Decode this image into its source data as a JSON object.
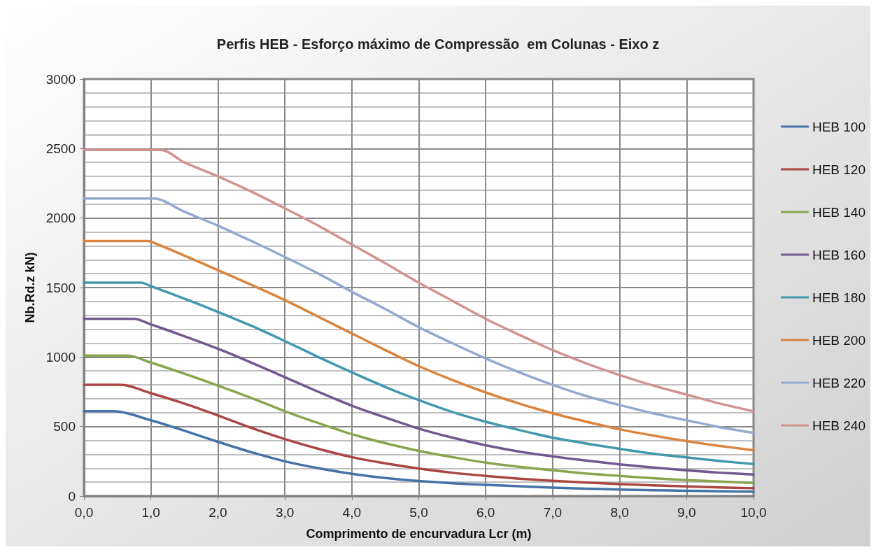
{
  "chart_data": {
    "type": "line",
    "title": "Perfis HEB - Esforço máximo de Compressão  em Colunas - Eixo z",
    "xlabel": "Comprimento de encurvadura Lcr (m)",
    "ylabel": "Nb.Rd.z kN)",
    "xlim": [
      0,
      10
    ],
    "xticks": [
      {
        "value": 0,
        "label": "0,0"
      },
      {
        "value": 1,
        "label": "1,0"
      },
      {
        "value": 2,
        "label": "2,0"
      },
      {
        "value": 3,
        "label": "3,0"
      },
      {
        "value": 4,
        "label": "4,0"
      },
      {
        "value": 5,
        "label": "5,0"
      },
      {
        "value": 6,
        "label": "6,0"
      },
      {
        "value": 7,
        "label": "7,0"
      },
      {
        "value": 8,
        "label": "8,0"
      },
      {
        "value": 9,
        "label": "9,0"
      },
      {
        "value": 10,
        "label": "10,0"
      }
    ],
    "ylim": [
      0,
      3000
    ],
    "yticks": [
      0,
      500,
      1000,
      1500,
      2000,
      2500,
      3000
    ],
    "grid": true,
    "legend": "right",
    "marker": "none",
    "line_style": "solid",
    "series": [
      {
        "name": "HEB 100",
        "color": "#4572a7",
        "x": [
          0,
          0.45,
          1,
          1.5,
          2,
          2.5,
          3,
          3.5,
          4,
          4.5,
          5,
          5.5,
          6,
          6.5,
          7,
          7.5,
          8,
          8.5,
          9,
          9.5,
          10
        ],
        "values": [
          610,
          610,
          545,
          470,
          390,
          315,
          250,
          200,
          160,
          130,
          108,
          92,
          80,
          70,
          60,
          53,
          47,
          42,
          38,
          34,
          31
        ]
      },
      {
        "name": "HEB 120",
        "color": "#aa4643",
        "x": [
          0,
          0.55,
          1,
          1.5,
          2,
          2.5,
          3,
          3.5,
          4,
          4.5,
          5,
          5.5,
          6,
          6.5,
          7,
          7.5,
          8,
          8.5,
          9,
          9.5,
          10
        ],
        "values": [
          800,
          800,
          740,
          665,
          580,
          490,
          410,
          340,
          280,
          235,
          198,
          168,
          145,
          125,
          110,
          97,
          86,
          77,
          69,
          62,
          56
        ]
      },
      {
        "name": "HEB 140",
        "color": "#89a54e",
        "x": [
          0,
          0.65,
          1,
          1.5,
          2,
          2.5,
          3,
          3.5,
          4,
          4.5,
          5,
          5.5,
          6,
          6.5,
          7,
          7.5,
          8,
          8.5,
          9,
          9.5,
          10
        ],
        "values": [
          1010,
          1010,
          960,
          880,
          795,
          705,
          610,
          525,
          445,
          380,
          325,
          280,
          240,
          210,
          185,
          162,
          145,
          128,
          115,
          104,
          95
        ]
      },
      {
        "name": "HEB 160",
        "color": "#71588f",
        "x": [
          0,
          0.75,
          1,
          1.5,
          2,
          2.5,
          3,
          3.5,
          4,
          4.5,
          5,
          5.5,
          6,
          6.5,
          7,
          7.5,
          8,
          8.5,
          9,
          9.5,
          10
        ],
        "values": [
          1275,
          1275,
          1235,
          1150,
          1060,
          960,
          855,
          750,
          650,
          565,
          485,
          420,
          365,
          320,
          285,
          255,
          228,
          205,
          185,
          168,
          155
        ]
      },
      {
        "name": "HEB 180",
        "color": "#4198af",
        "x": [
          0,
          0.85,
          1,
          1.5,
          2,
          2.5,
          3,
          3.5,
          4,
          4.5,
          5,
          5.5,
          6,
          6.5,
          7,
          7.5,
          8,
          8.5,
          9,
          9.5,
          10
        ],
        "values": [
          1535,
          1535,
          1510,
          1420,
          1325,
          1225,
          1115,
          1000,
          890,
          785,
          690,
          605,
          535,
          475,
          420,
          378,
          340,
          305,
          278,
          252,
          230
        ]
      },
      {
        "name": "HEB 200",
        "color": "#db843d",
        "x": [
          0,
          0.95,
          1,
          1.5,
          2,
          2.5,
          3,
          3.5,
          4,
          4.5,
          5,
          5.5,
          6,
          6.5,
          7,
          7.5,
          8,
          8.5,
          9,
          9.5,
          10
        ],
        "values": [
          1835,
          1835,
          1830,
          1730,
          1625,
          1520,
          1410,
          1290,
          1170,
          1050,
          935,
          835,
          745,
          665,
          595,
          535,
          480,
          435,
          395,
          360,
          330
        ]
      },
      {
        "name": "HEB 220",
        "color": "#93a9cf",
        "x": [
          0,
          1.05,
          1.5,
          2,
          2.5,
          3,
          3.5,
          4,
          4.5,
          5,
          5.5,
          6,
          6.5,
          7,
          7.5,
          8,
          8.5,
          9,
          9.5,
          10
        ],
        "values": [
          2140,
          2140,
          2045,
          1945,
          1835,
          1720,
          1600,
          1470,
          1345,
          1215,
          1100,
          990,
          890,
          800,
          720,
          655,
          595,
          545,
          495,
          455
        ]
      },
      {
        "name": "HEB 240",
        "color": "#d19392",
        "x": [
          0,
          1.15,
          1.5,
          2,
          2.5,
          3,
          3.5,
          4,
          4.5,
          5,
          5.5,
          6,
          6.5,
          7,
          7.5,
          8,
          8.5,
          9,
          9.5,
          10
        ],
        "values": [
          2490,
          2490,
          2400,
          2300,
          2190,
          2070,
          1945,
          1810,
          1675,
          1535,
          1405,
          1275,
          1160,
          1050,
          955,
          870,
          795,
          730,
          665,
          610
        ]
      }
    ]
  }
}
